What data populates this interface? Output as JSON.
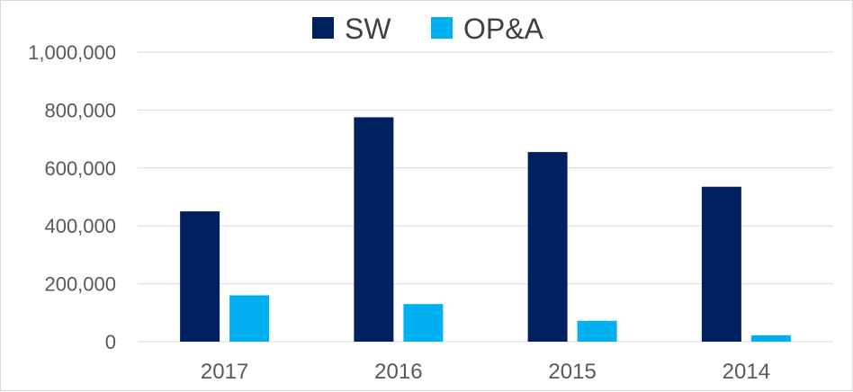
{
  "chart_data": {
    "type": "bar",
    "categories": [
      "2017",
      "2016",
      "2015",
      "2014"
    ],
    "series": [
      {
        "name": "SW",
        "color": "#002060",
        "values": [
          450000,
          775000,
          655000,
          535000
        ]
      },
      {
        "name": "OP&A",
        "color": "#00B0F0",
        "values": [
          160000,
          130000,
          72000,
          22000
        ]
      }
    ],
    "ylim": [
      0,
      1000000
    ],
    "yticks": [
      0,
      200000,
      400000,
      600000,
      800000,
      1000000
    ],
    "ytick_labels": [
      "0",
      "200,000",
      "400,000",
      "600,000",
      "800,000",
      "1,000,000"
    ],
    "grid": true,
    "legend_position": "top-center",
    "gridline_color": "#d9d9d9"
  }
}
